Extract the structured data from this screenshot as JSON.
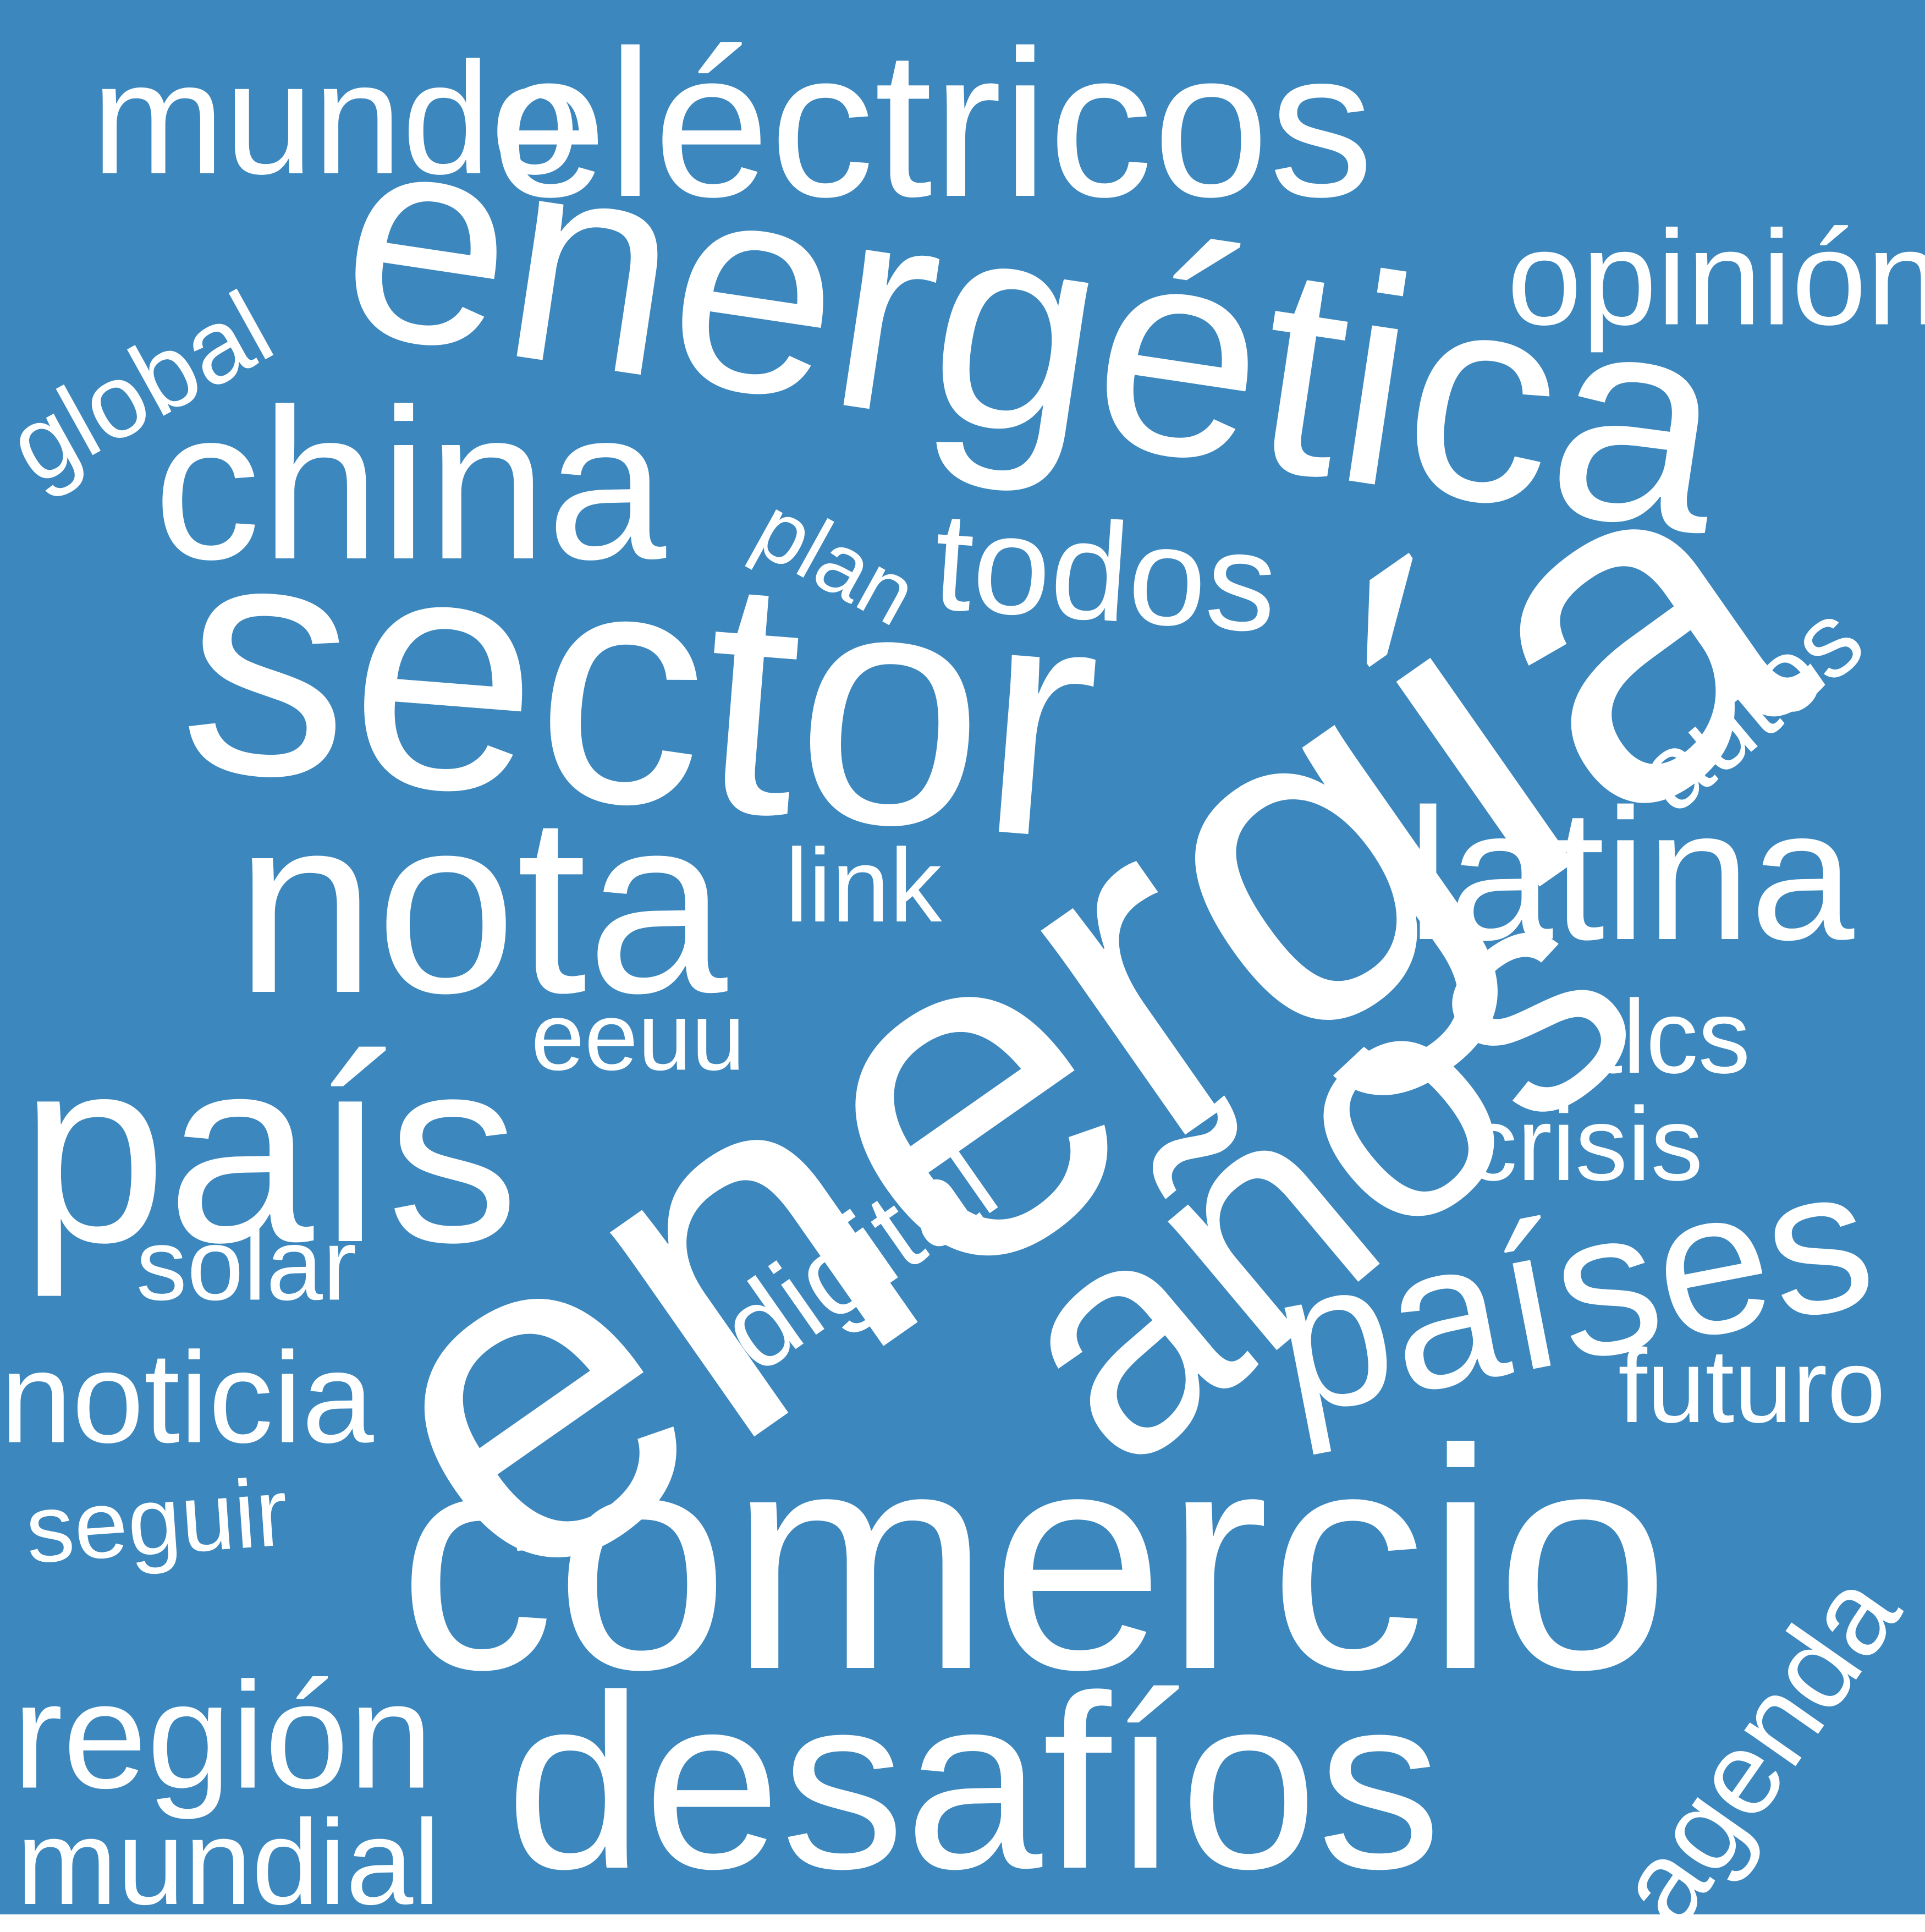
{
  "background_color": "#3b87be",
  "text_color": "#ffffff",
  "words": {
    "mundo": "mundo",
    "electricos": "eléctricos",
    "energetica": "energética",
    "opinion": "opinión",
    "global": "global",
    "china": "china",
    "plan": "plan",
    "todos": "todos",
    "autos": "autos",
    "sector": "sector",
    "nota": "nota",
    "link": "link",
    "latina": "latina",
    "tlcs": "tlcs",
    "eeuu": "eeuu",
    "energia": "energía",
    "anos": "años",
    "pais": "país",
    "crisis": "crisis",
    "digital": "digital",
    "paises": "países",
    "solar": "solar",
    "futuro": "futuro",
    "noticia": "noticia",
    "seguir": "seguir",
    "comercio": "comercio",
    "agenda": "agenda",
    "region": "región",
    "desafios": "desafíos",
    "mundial": "mundial"
  }
}
